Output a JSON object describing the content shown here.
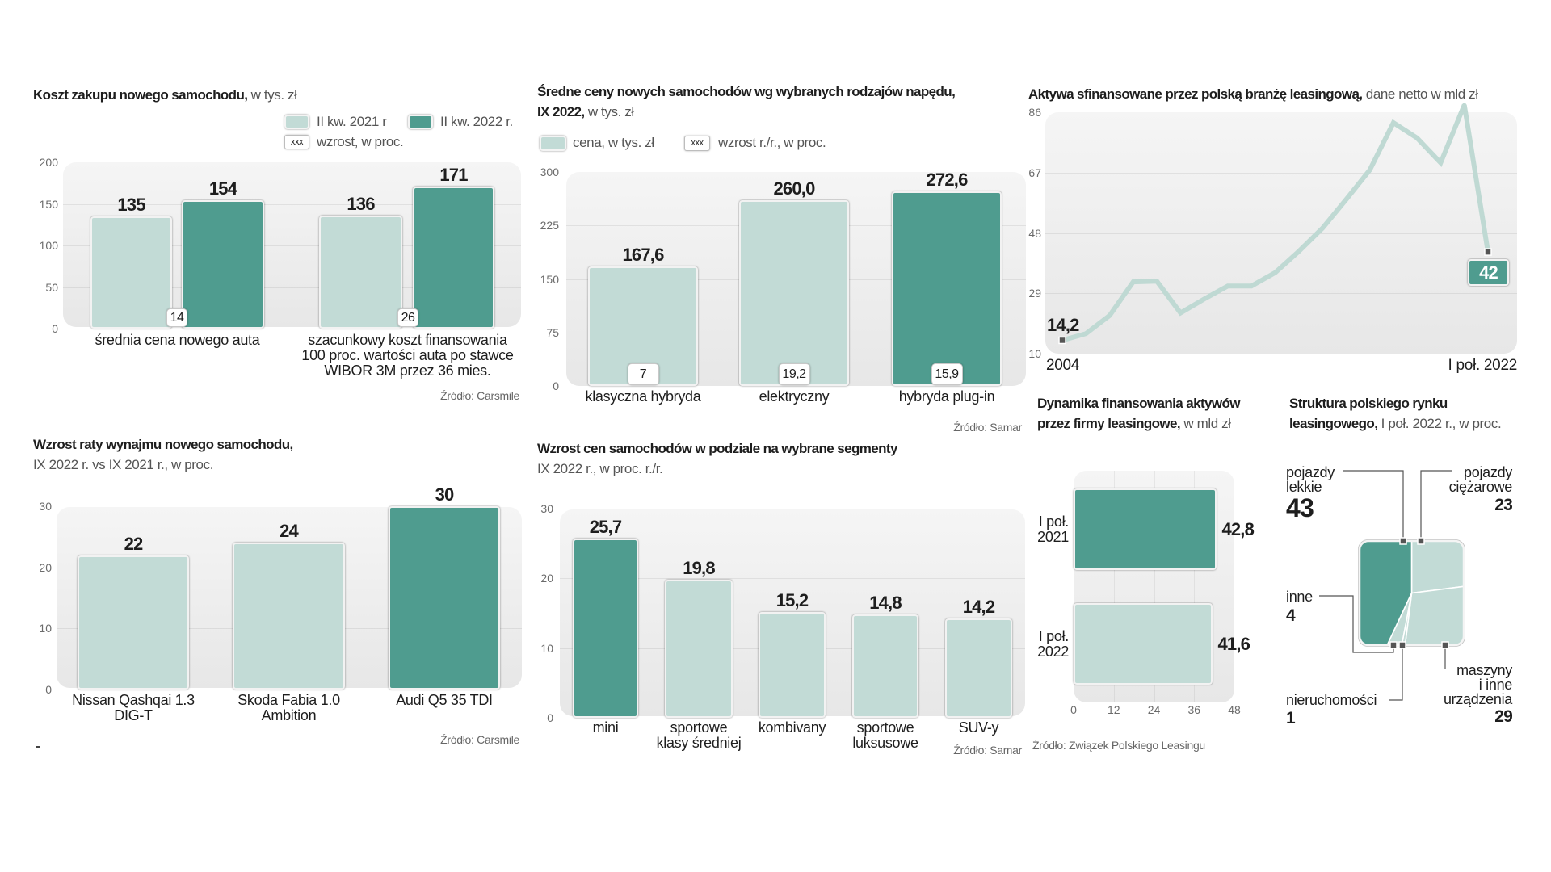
{
  "palette": {
    "light": "#c2dbd6",
    "dark": "#4f9c8f",
    "marker": "#555555"
  },
  "chart_data": [
    {
      "type": "bar",
      "title": "Koszt zakupu nowego samochodu,",
      "title_suffix": " w tys. zł",
      "categories": [
        [
          "średnia cena nowego auta"
        ],
        [
          "szacunkowy koszt finansowania",
          "100 proc. wartości auta po stawce",
          "WIBOR 3M przez 36 mies."
        ]
      ],
      "series": [
        {
          "name": "II kw. 2021 r",
          "color": "light",
          "values": [
            135,
            136
          ],
          "value_labels": [
            "135",
            "136"
          ]
        },
        {
          "name": "II kw. 2022 r.",
          "color": "dark",
          "values": [
            154,
            171
          ],
          "value_labels": [
            "154",
            "171"
          ]
        }
      ],
      "growth_badges": [
        "14",
        "26"
      ],
      "growth_legend": {
        "sample": "xxx",
        "label": "wzrost, w proc."
      },
      "xlabel": "",
      "ylabel": "",
      "ylim": [
        0,
        200
      ],
      "yticks": [
        0,
        50,
        100,
        150,
        200
      ],
      "grid": true,
      "legend_position": "top-right",
      "source": "Źródło: Carsmile"
    },
    {
      "type": "bar",
      "title_line1": "Średne ceny nowych samochodów wg wybranych rodzajów napędu,",
      "title": "IX 2022,",
      "title_suffix": " w tys. zł",
      "legend": [
        {
          "swatch": "light",
          "label": "cena, w tys. zł"
        },
        {
          "sample": "xxx",
          "label": "wzrost r./r., w proc."
        }
      ],
      "categories": [
        [
          "klasyczna hybryda"
        ],
        [
          "elektryczny"
        ],
        [
          "hybryda plug-in"
        ]
      ],
      "values": [
        167.6,
        260.0,
        272.6
      ],
      "value_labels": [
        "167,6",
        "260,0",
        "272,6"
      ],
      "bar_colors": [
        "light",
        "light",
        "dark"
      ],
      "growth_badges": [
        "7",
        "19,2",
        "15,9"
      ],
      "xlabel": "",
      "ylabel": "",
      "ylim": [
        0,
        300
      ],
      "yticks": [
        0,
        75,
        150,
        225,
        300
      ],
      "grid": true,
      "legend_position": "top-left",
      "source": "Źródło: Samar"
    },
    {
      "type": "line",
      "title": "Aktywa sfinansowane przez polską branżę leasingową,",
      "title_suffix": " dane netto w mld zł",
      "x": [
        "2004",
        "2005",
        "2006",
        "2007",
        "2008",
        "2009",
        "2010",
        "2011",
        "2012",
        "2013",
        "2014",
        "2015",
        "2016",
        "2017",
        "2018",
        "2019",
        "2020",
        "2021",
        "I poł. 2022"
      ],
      "values": [
        14.2,
        16.3,
        22.0,
        32.6,
        32.8,
        22.8,
        27.2,
        31.3,
        31.3,
        35.5,
        42.2,
        49.5,
        58.5,
        67.8,
        82.7,
        77.9,
        70.1,
        88.3,
        42
      ],
      "xtick_labels": [
        "2004",
        "I poł. 2022"
      ],
      "annotations": [
        {
          "index": 0,
          "label": "14,2"
        },
        {
          "index": 18,
          "label": "42"
        }
      ],
      "xlabel": "",
      "ylabel": "",
      "ylim": [
        10,
        86
      ],
      "yticks": [
        10,
        29,
        48,
        67,
        86
      ],
      "grid": true,
      "line_color": "#bfd9d3"
    },
    {
      "type": "bar",
      "title": "Wzrost raty wynajmu nowego samochodu,",
      "subtitle": "IX 2022 r. vs IX 2021 r., w proc.",
      "categories": [
        [
          "Nissan Qashqai 1.3",
          "DIG-T"
        ],
        [
          "Skoda Fabia 1.0",
          "Ambition"
        ],
        [
          "Audi  Q5 35 TDI"
        ]
      ],
      "values": [
        22,
        24,
        30
      ],
      "value_labels": [
        "22",
        "24",
        "30"
      ],
      "bar_colors": [
        "light",
        "light",
        "dark"
      ],
      "xlabel": "",
      "ylabel": "",
      "ylim": [
        0,
        30
      ],
      "yticks": [
        0,
        10,
        20,
        30
      ],
      "grid": true,
      "source": "Źródło: Carsmile"
    },
    {
      "type": "bar",
      "title": "Wzrost cen samochodów w podziale na wybrane segmenty",
      "subtitle": "IX 2022 r., w proc. r./r.",
      "categories": [
        [
          "mini"
        ],
        [
          "sportowe",
          "klasy średniej"
        ],
        [
          "kombivany"
        ],
        [
          "sportowe",
          "luksusowe"
        ],
        [
          "SUV-y"
        ]
      ],
      "values": [
        25.7,
        19.8,
        15.2,
        14.8,
        14.2
      ],
      "value_labels": [
        "25,7",
        "19,8",
        "15,2",
        "14,8",
        "14,2"
      ],
      "bar_colors": [
        "dark",
        "light",
        "light",
        "light",
        "light"
      ],
      "xlabel": "",
      "ylabel": "",
      "ylim": [
        0,
        30
      ],
      "yticks": [
        0,
        10,
        20,
        30
      ],
      "grid": true,
      "source": "Źródło: Samar"
    },
    {
      "type": "bar",
      "orientation": "horizontal",
      "title_line1": "Dynamika finansowania aktywów",
      "title": "przez firmy leasingowe,",
      "title_suffix": " w mld zł",
      "categories": [
        [
          "I poł.",
          "2021"
        ],
        [
          "I poł.",
          "2022"
        ]
      ],
      "values": [
        42.8,
        41.6
      ],
      "value_labels": [
        "42,8",
        "41,6"
      ],
      "bar_colors": [
        "dark",
        "light"
      ],
      "xlabel": "",
      "ylabel": "",
      "xlim": [
        0,
        48
      ],
      "xticks": [
        0,
        12,
        24,
        36,
        48
      ],
      "grid": true,
      "source": "Źródło: Związek Polskiego Leasingu"
    },
    {
      "type": "pie",
      "title_line1": "Struktura polskiego rynku",
      "title": "leasingowego,",
      "title_suffix": " I poł. 2022 r., w proc.",
      "segments": [
        {
          "label": [
            "pojazdy",
            "lekkie"
          ],
          "value": 43,
          "value_label": "43",
          "color": "dark"
        },
        {
          "label": [
            "pojazdy",
            "ciężarowe"
          ],
          "value": 23,
          "value_label": "23",
          "color": "light"
        },
        {
          "label": [
            "maszyny",
            "i inne",
            "urządzenia"
          ],
          "value": 29,
          "value_label": "29",
          "color": "light"
        },
        {
          "label": [
            "nieruchomości"
          ],
          "value": 1,
          "value_label": "1",
          "color": "light"
        },
        {
          "label": [
            "inne"
          ],
          "value": 4,
          "value_label": "4",
          "color": "light"
        }
      ]
    }
  ]
}
